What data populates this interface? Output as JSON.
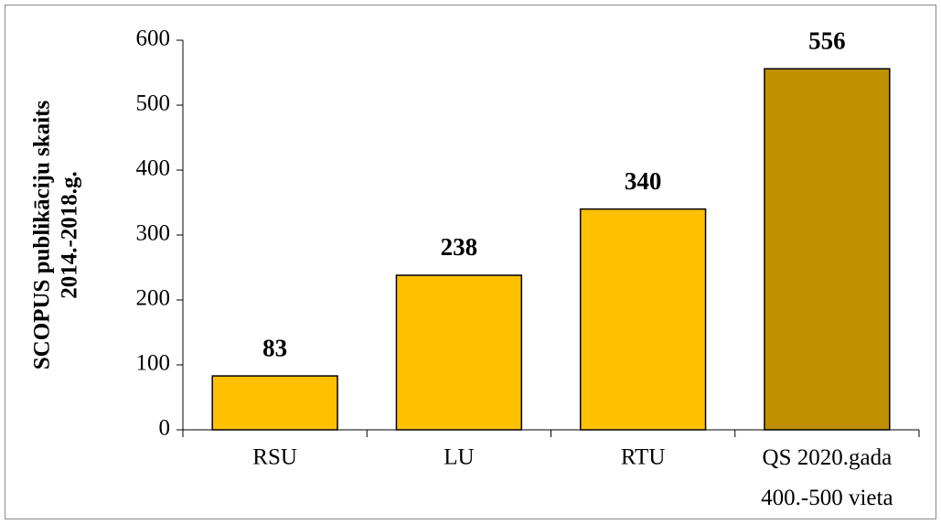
{
  "chart_data": {
    "type": "bar",
    "ylabel": [
      "SCOPUS publikāciju skaits",
      "2014.-2018.g."
    ],
    "categories": [
      "RSU",
      "LU",
      "RTU",
      "QS 2020.gada\n400.-500 vieta"
    ],
    "values": [
      83,
      238,
      340,
      556
    ],
    "colors": [
      "#ffc000",
      "#ffc000",
      "#ffc000",
      "#bf9000"
    ],
    "ylim": [
      0,
      600
    ],
    "yticks": [
      0,
      100,
      200,
      300,
      400,
      500,
      600
    ],
    "grid": false
  }
}
